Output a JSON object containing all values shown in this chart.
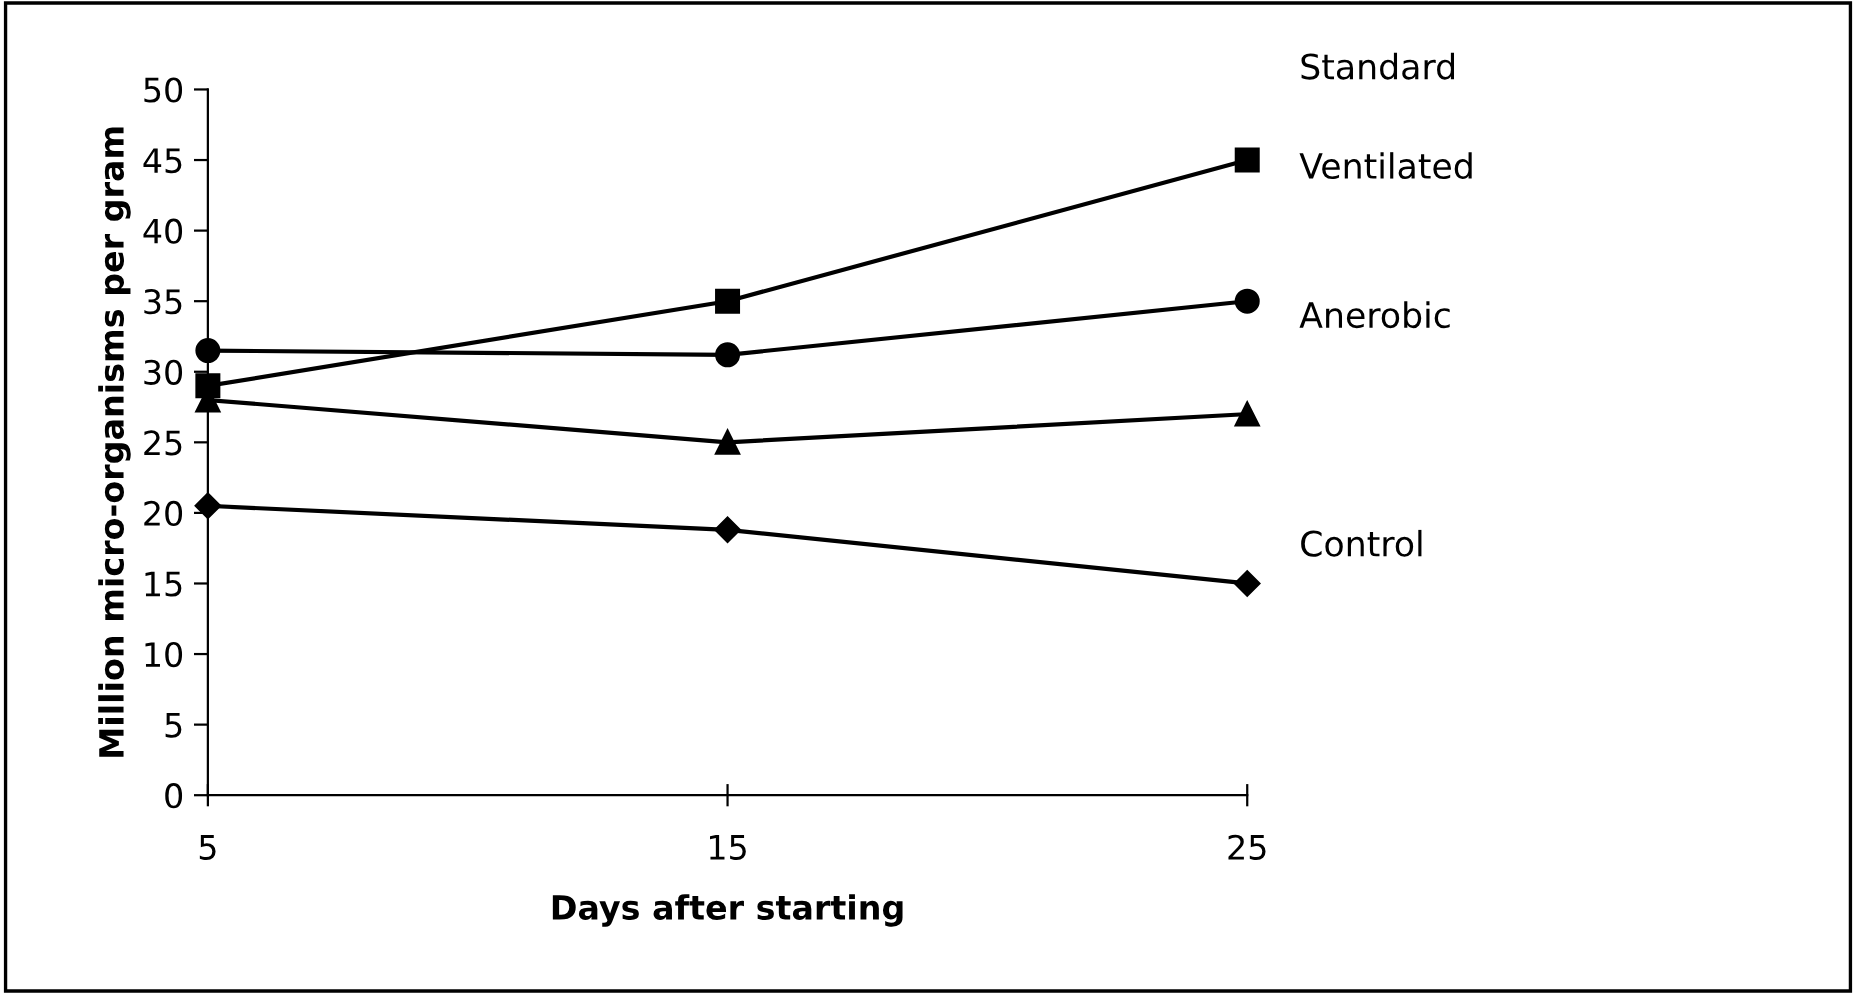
{
  "chart_data": {
    "type": "line",
    "ylabel": "Million micro-organisms per gram",
    "xlabel": "Days after starting",
    "categories": [
      "5",
      "15",
      "25"
    ],
    "series": [
      {
        "name": "Standard",
        "color": "#000000",
        "marker": "square",
        "values": [
          29,
          35,
          45
        ]
      },
      {
        "name": "Ventilated",
        "color": "#000000",
        "marker": "circle",
        "values": [
          31.5,
          31.2,
          35
        ]
      },
      {
        "name": "Anerobic",
        "color": "#000000",
        "marker": "triangle",
        "values": [
          28,
          25,
          27
        ]
      },
      {
        "name": "Control",
        "color": "#000000",
        "marker": "diamond",
        "values": [
          20.5,
          18.8,
          15
        ]
      }
    ],
    "ylim": [
      0,
      50
    ],
    "yticks": [
      0,
      5,
      10,
      15,
      20,
      25,
      30,
      35,
      40,
      45,
      50
    ],
    "grid": false,
    "line_style": "solid"
  }
}
